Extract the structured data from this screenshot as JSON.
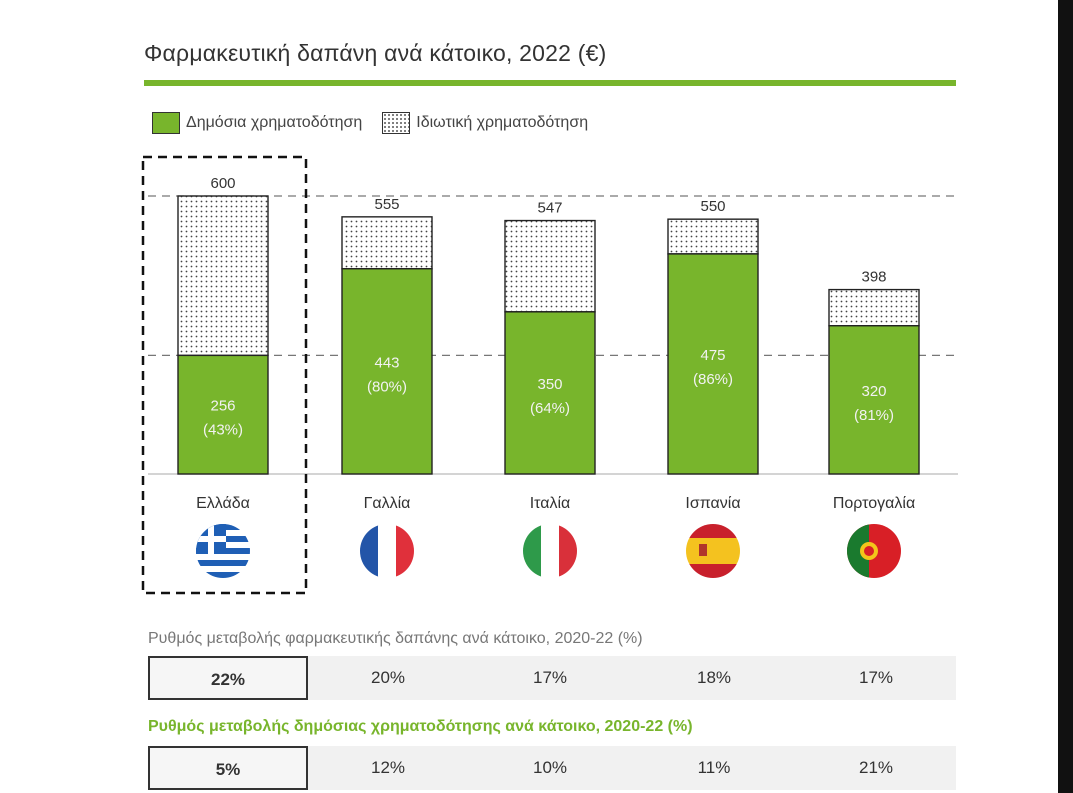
{
  "title": "Φαρμακευτική δαπάνη ανά κάτοικο, 2022 (€)",
  "legend": {
    "public": "Δημόσια χρηματοδότηση",
    "private": "Ιδιωτική χρηματοδότηση"
  },
  "colors": {
    "public": "#78b52c",
    "accent_rule": "#78b52c"
  },
  "chart_data": {
    "type": "bar",
    "stacked": true,
    "categories": [
      "Ελλάδα",
      "Γαλλία",
      "Ιταλία",
      "Ισπανία",
      "Πορτογαλία"
    ],
    "totals": [
      600,
      555,
      547,
      550,
      398
    ],
    "series": [
      {
        "name": "Δημόσια χρηματοδότηση",
        "values": [
          256,
          443,
          350,
          475,
          320
        ],
        "labels": [
          "256",
          "443",
          "350",
          "475",
          "320"
        ],
        "shares": [
          "(43%)",
          "(80%)",
          "(64%)",
          "(86%)",
          "(81%)"
        ]
      },
      {
        "name": "Ιδιωτική χρηματοδότηση",
        "values": [
          344,
          112,
          197,
          75,
          78
        ]
      }
    ],
    "reference_lines": [
      600,
      256
    ],
    "highlighted_category": "Ελλάδα",
    "flags": [
      "greece-flag-icon",
      "france-flag-icon",
      "italy-flag-icon",
      "spain-flag-icon",
      "portugal-flag-icon"
    ]
  },
  "growth_total": {
    "label": "Ρυθμός μεταβολής φαρμακευτικής δαπάνης ανά κάτοικο, 2020-22 (%)",
    "values": [
      "22%",
      "20%",
      "17%",
      "18%",
      "17%"
    ]
  },
  "growth_public": {
    "label": "Ρυθμός μεταβολής δημόσιας χρηματοδότησης ανά κάτοικο, 2020-22 (%)",
    "values": [
      "5%",
      "12%",
      "10%",
      "11%",
      "21%"
    ]
  }
}
